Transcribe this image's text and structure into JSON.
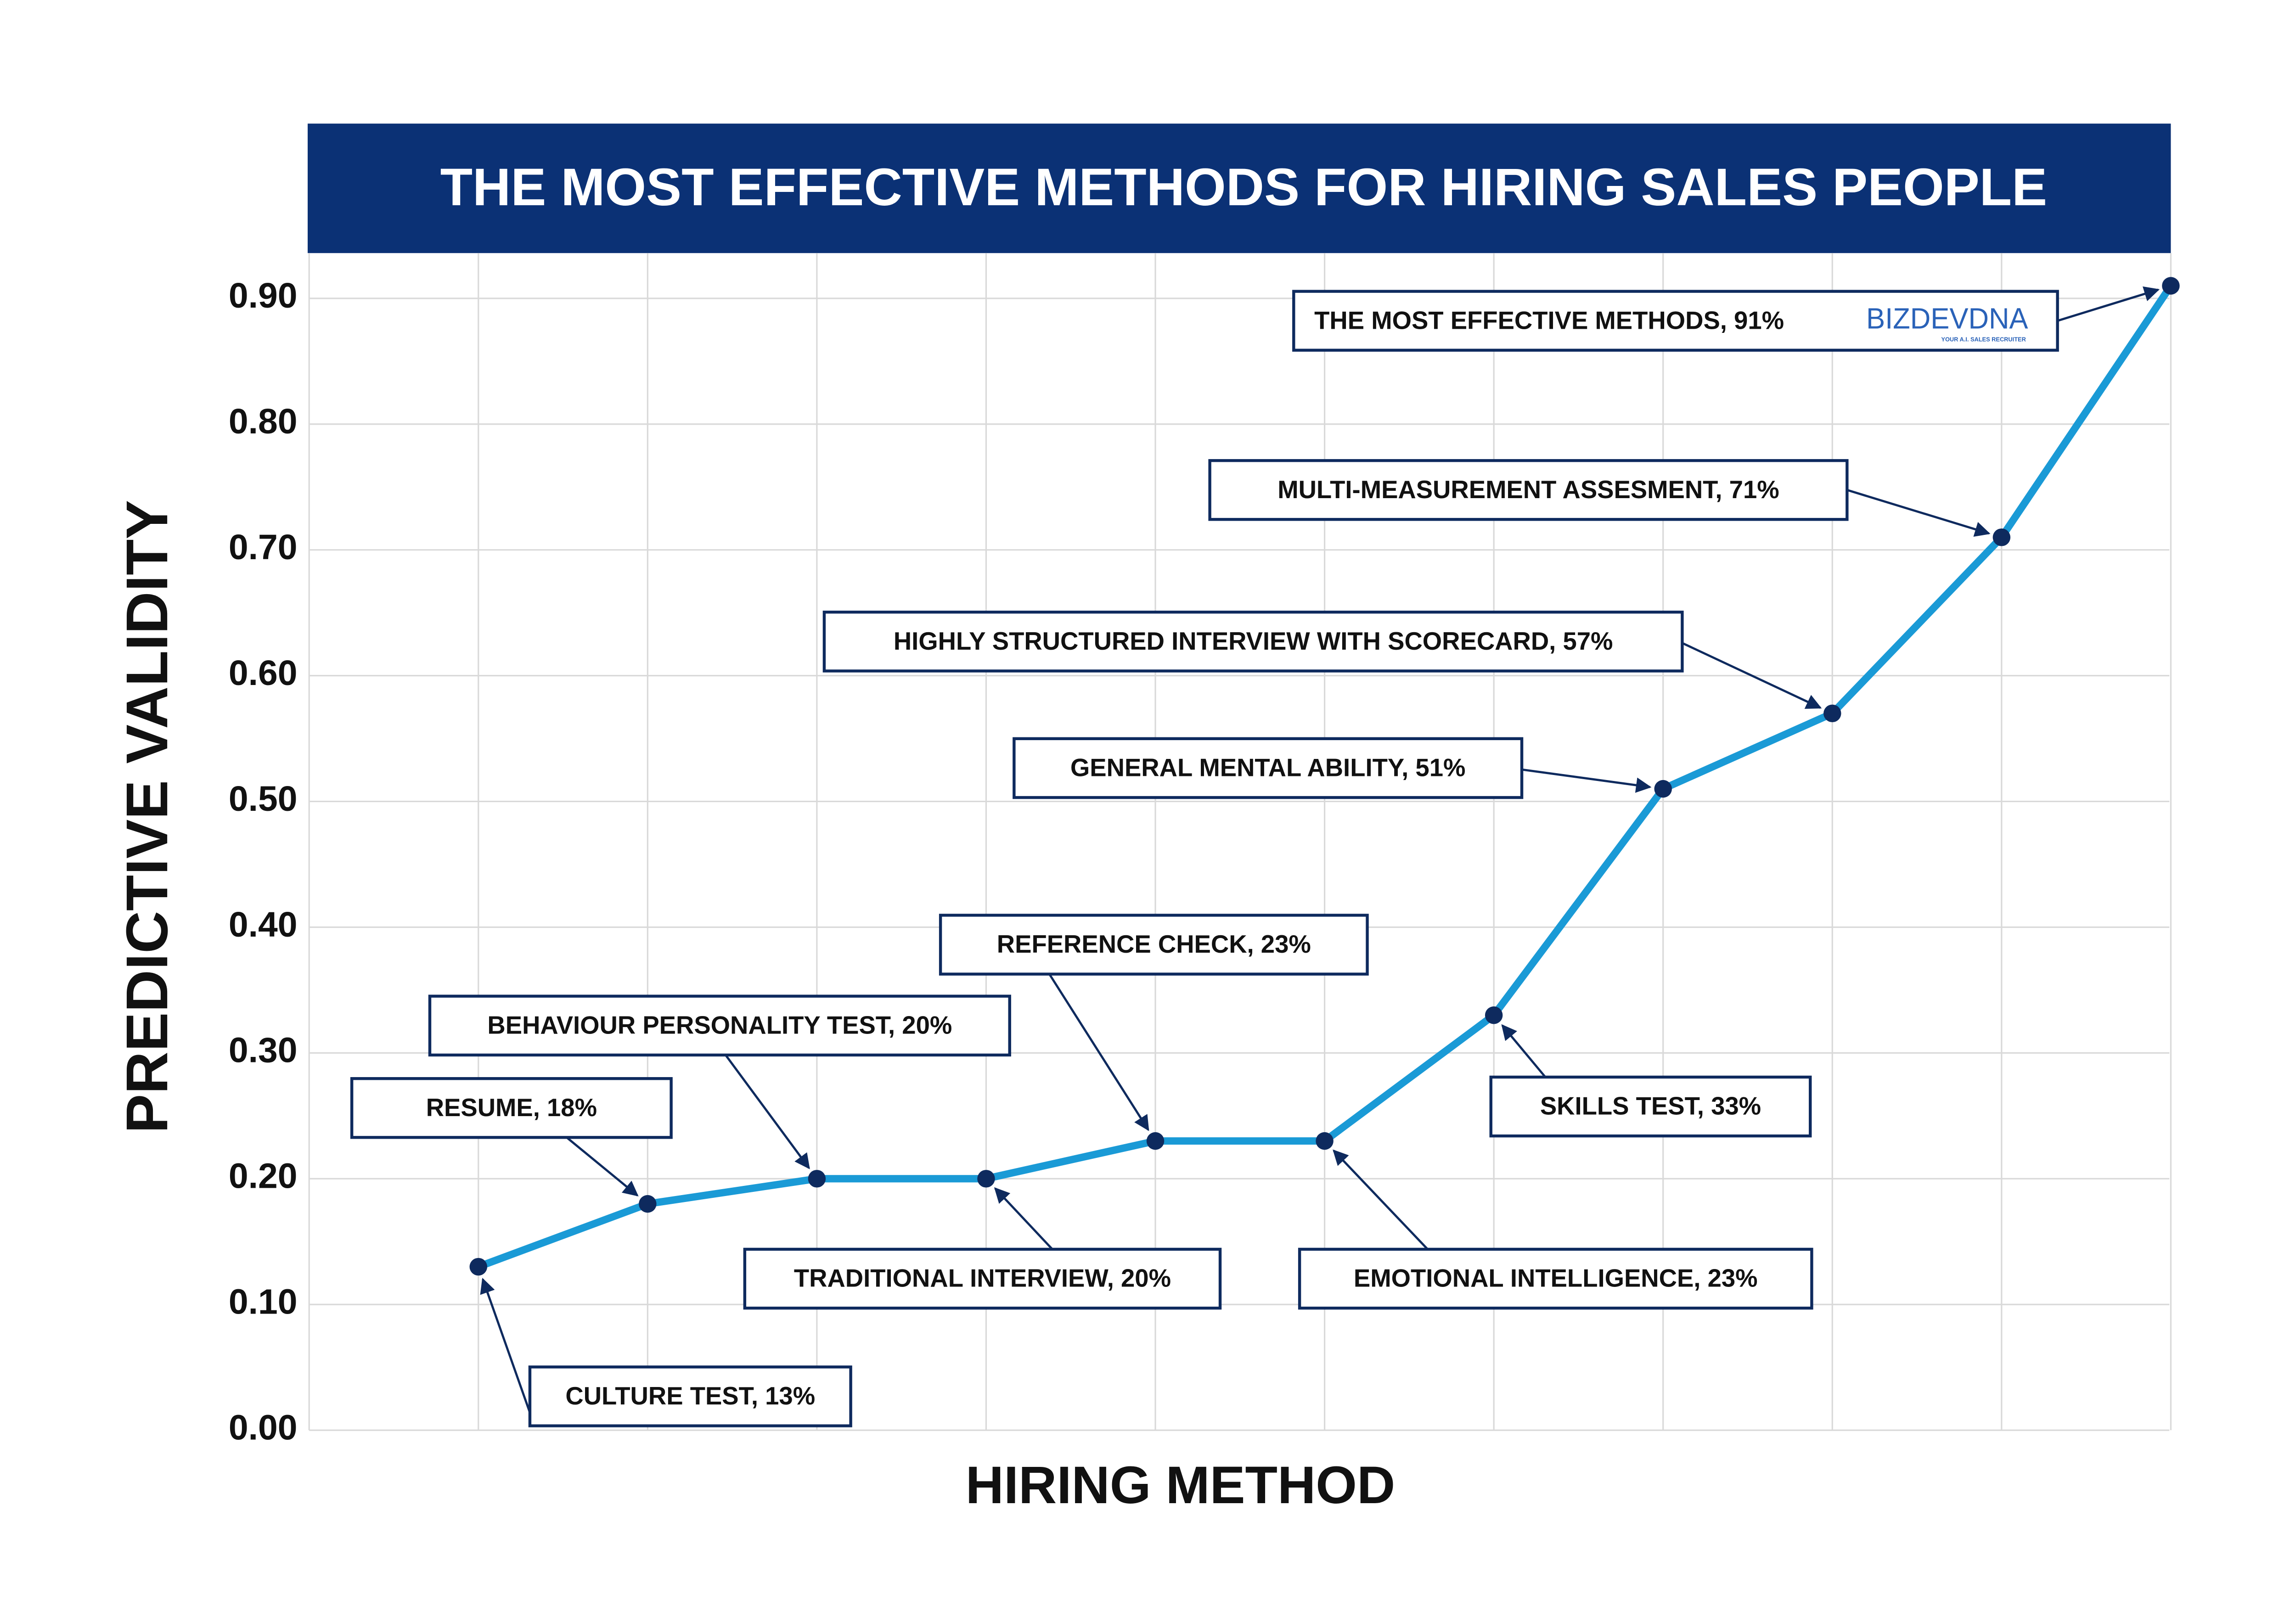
{
  "chart_data": {
    "type": "line",
    "title": "THE MOST EFFECTIVE METHODS FOR HIRING SALES PEOPLE",
    "y_label": "PREDICTIVE VALIDITY",
    "x_label": "HIRING METHOD",
    "annotations": [
      "CULTURE TEST, 13%",
      "RESUME, 18%",
      "BEHAVIOUR PERSONALITY TEST, 20%",
      "TRADITIONAL INTERVIEW, 20%",
      "REFERENCE CHECK, 23%",
      "EMOTIONAL INTELLIGENCE, 23%",
      "SKILLS TEST, 33%",
      "GENERAL MENTAL ABILITY, 51%",
      "HIGHLY STRUCTURED INTERVIEW WITH SCORECARD, 57%",
      "MULTI-MEASUREMENT ASSESMENT, 71%",
      "THE MOST EFFECTIVE METHODS, 91%"
    ],
    "values": [
      0.13,
      0.18,
      0.2,
      0.2,
      0.23,
      0.23,
      0.33,
      0.51,
      0.57,
      0.71,
      0.91
    ],
    "color": "#1a9ad6",
    "marker_color": "#0e2a5e",
    "ylim": [
      0,
      0.936
    ],
    "yticks": [
      {
        "value": 0,
        "label": "0.00"
      },
      {
        "value": 0.1,
        "label": "0.10"
      },
      {
        "value": 0.2,
        "label": "0.20"
      },
      {
        "value": 0.3,
        "label": "0.30"
      },
      {
        "value": 0.4,
        "label": "0.40"
      },
      {
        "value": 0.5,
        "label": "0.50"
      },
      {
        "value": 0.6,
        "label": "0.60"
      },
      {
        "value": 0.7,
        "label": "0.70"
      },
      {
        "value": 0.8,
        "label": "0.80"
      },
      {
        "value": 0.9,
        "label": "0.90"
      }
    ],
    "grid": true,
    "logo": "BIZDEVDNA",
    "logo_tagline": "YOUR A.I. SALES RECRUITER"
  }
}
